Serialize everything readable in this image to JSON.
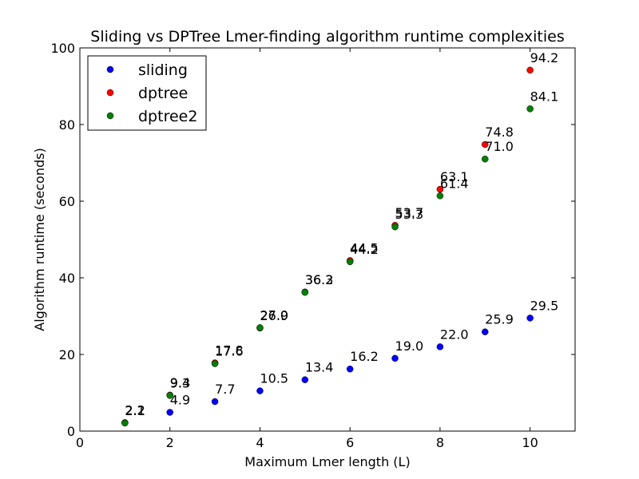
{
  "chart_data": {
    "type": "scatter",
    "title": "Sliding vs DPTree Lmer-finding algorithm runtime complexities",
    "xlabel": "Maximum Lmer length (L)",
    "ylabel": "Algorithm runtime (seconds)",
    "xlim": [
      0,
      11
    ],
    "ylim": [
      0,
      100
    ],
    "xticks": [
      0,
      2,
      4,
      6,
      8,
      10
    ],
    "yticks": [
      0,
      20,
      40,
      60,
      80,
      100
    ],
    "xtick_labels": [
      "0",
      "2",
      "4",
      "6",
      "8",
      "10"
    ],
    "ytick_labels": [
      "0",
      "20",
      "40",
      "60",
      "80",
      "100"
    ],
    "grid": false,
    "legend_position": "top-left",
    "series": [
      {
        "name": "sliding",
        "color": "#0000ff",
        "x": [
          1,
          2,
          3,
          4,
          5,
          6,
          7,
          8,
          9,
          10
        ],
        "y": [
          2.2,
          4.9,
          7.7,
          10.5,
          13.4,
          16.2,
          19.0,
          22.0,
          25.9,
          29.5
        ],
        "labels": [
          "2.2",
          "4.9",
          "7.7",
          "10.5",
          "13.4",
          "16.2",
          "19.0",
          "22.0",
          "25.9",
          "29.5"
        ]
      },
      {
        "name": "dptree",
        "color": "#ff0000",
        "x": [
          1,
          2,
          3,
          4,
          5,
          6,
          7,
          8,
          9,
          10
        ],
        "y": [
          2.2,
          9.4,
          17.8,
          26.9,
          36.3,
          44.5,
          53.7,
          63.1,
          74.8,
          94.2
        ],
        "labels": [
          "2.2",
          "9.4",
          "17.8",
          "26.9",
          "36.3",
          "44.5",
          "53.7",
          "63.1",
          "74.8",
          "94.2"
        ]
      },
      {
        "name": "dptree2",
        "color": "#008000",
        "x": [
          1,
          2,
          3,
          4,
          5,
          6,
          7,
          8,
          9,
          10
        ],
        "y": [
          2.1,
          9.3,
          17.6,
          27.0,
          36.2,
          44.2,
          53.3,
          61.4,
          71.0,
          84.1
        ],
        "labels": [
          "2.1",
          "9.3",
          "17.6",
          "27.0",
          "36.2",
          "44.2",
          "53.3",
          "61.4",
          "71.0",
          "84.1"
        ]
      }
    ]
  }
}
